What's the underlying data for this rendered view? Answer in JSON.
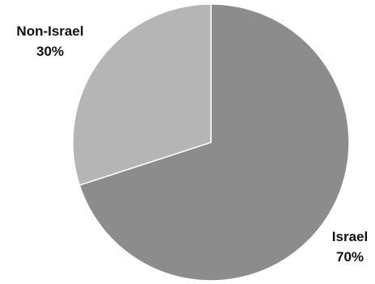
{
  "chart_data": {
    "type": "pie",
    "title": "",
    "slices": [
      {
        "label": "Israel",
        "value": 70,
        "value_label": "70%",
        "color": "#8c8c8c"
      },
      {
        "label": "Non-Israel",
        "value": 30,
        "value_label": "30%",
        "color": "#b5b5b5"
      }
    ],
    "start_angle_deg": 0,
    "direction": "clockwise",
    "stroke_color": "#ffffff",
    "legend": "none",
    "data_labels": "outside"
  }
}
